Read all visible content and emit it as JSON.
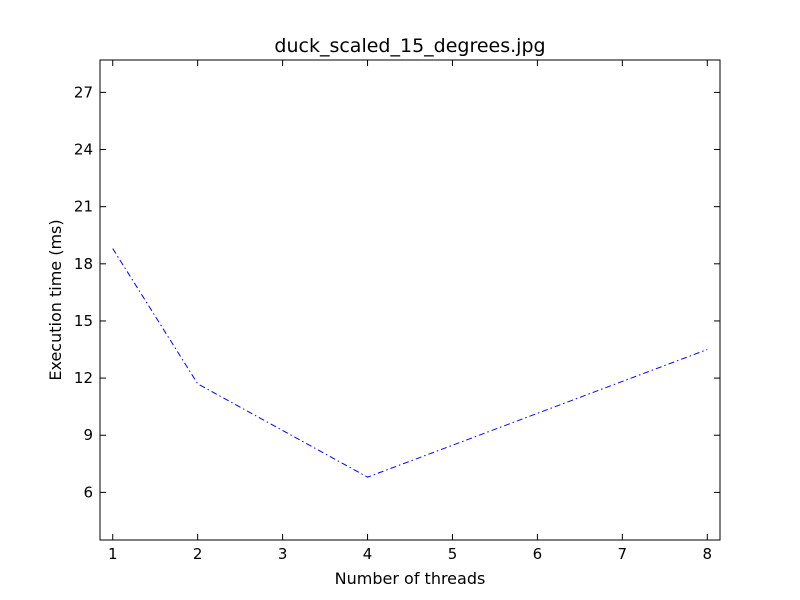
{
  "chart_data": {
    "type": "line",
    "title": "duck_scaled_15_degrees.jpg",
    "xlabel": "Number of threads",
    "ylabel": "Execution time (ms)",
    "xlim": [
      0.85,
      8.15
    ],
    "ylim": [
      3.5,
      28.7
    ],
    "xticks": [
      1,
      2,
      3,
      4,
      5,
      6,
      7,
      8
    ],
    "yticks": [
      6,
      9,
      12,
      15,
      18,
      21,
      24,
      27
    ],
    "grid": false,
    "series": [
      {
        "color": "#0000ff",
        "linestyle": "dash-dot",
        "x": [
          1,
          2,
          4,
          8
        ],
        "y": [
          18.8,
          11.7,
          6.8,
          13.5
        ]
      }
    ]
  }
}
